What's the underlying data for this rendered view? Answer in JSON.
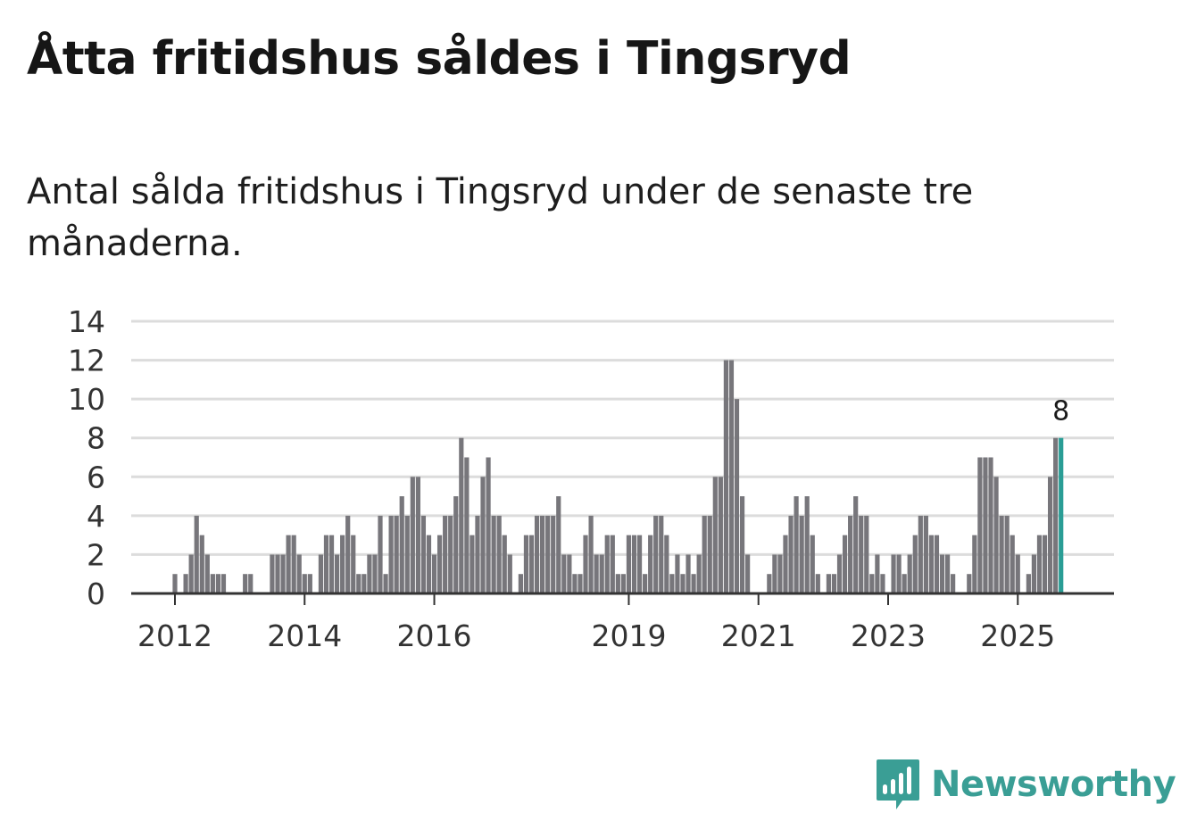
{
  "header": {
    "title": "Åtta fritidshus såldes i Tingsryd",
    "subtitle": "Antal sålda fritidshus i Tingsryd under de senaste tre månaderna."
  },
  "brand": {
    "name": "Newsworthy",
    "color": "#3a9e95",
    "icon": "bar-chart-speech-bubble-icon"
  },
  "chart_data": {
    "type": "bar",
    "title": "Åtta fritidshus såldes i Tingsryd",
    "xlabel": "",
    "ylabel": "",
    "ylim": [
      0,
      14
    ],
    "yticks": [
      "0",
      "2",
      "4",
      "6",
      "8",
      "10",
      "12",
      "14"
    ],
    "xticks": [
      {
        "label": "2012",
        "index": 0
      },
      {
        "label": "2014",
        "index": 24
      },
      {
        "label": "2016",
        "index": 48
      },
      {
        "label": "2019",
        "index": 84
      },
      {
        "label": "2021",
        "index": 108
      },
      {
        "label": "2023",
        "index": 132
      },
      {
        "label": "2025",
        "index": 156
      }
    ],
    "grid": true,
    "bar_color": "#77767b",
    "highlight_color": "#2a9d95",
    "highlight_label": "8",
    "values": [
      1,
      0,
      1,
      2,
      4,
      3,
      2,
      1,
      1,
      1,
      0,
      0,
      0,
      1,
      1,
      0,
      0,
      0,
      2,
      2,
      2,
      3,
      3,
      2,
      1,
      1,
      0,
      2,
      3,
      3,
      2,
      3,
      4,
      3,
      1,
      1,
      2,
      2,
      4,
      1,
      4,
      4,
      5,
      4,
      6,
      6,
      4,
      3,
      2,
      3,
      4,
      4,
      5,
      8,
      7,
      3,
      4,
      6,
      7,
      4,
      4,
      3,
      2,
      0,
      1,
      3,
      3,
      4,
      4,
      4,
      4,
      5,
      2,
      2,
      1,
      1,
      3,
      4,
      2,
      2,
      3,
      3,
      1,
      1,
      3,
      3,
      3,
      1,
      3,
      4,
      4,
      3,
      1,
      2,
      1,
      2,
      1,
      2,
      4,
      4,
      6,
      6,
      12,
      12,
      10,
      5,
      2,
      0,
      0,
      0,
      1,
      2,
      2,
      3,
      4,
      5,
      4,
      5,
      3,
      1,
      0,
      1,
      1,
      2,
      3,
      4,
      5,
      4,
      4,
      1,
      2,
      1,
      0,
      2,
      2,
      1,
      2,
      3,
      4,
      4,
      3,
      3,
      2,
      2,
      1,
      0,
      0,
      1,
      3,
      7,
      7,
      7,
      6,
      4,
      4,
      3,
      2,
      0,
      1,
      2,
      3,
      3,
      6,
      8,
      8
    ]
  }
}
